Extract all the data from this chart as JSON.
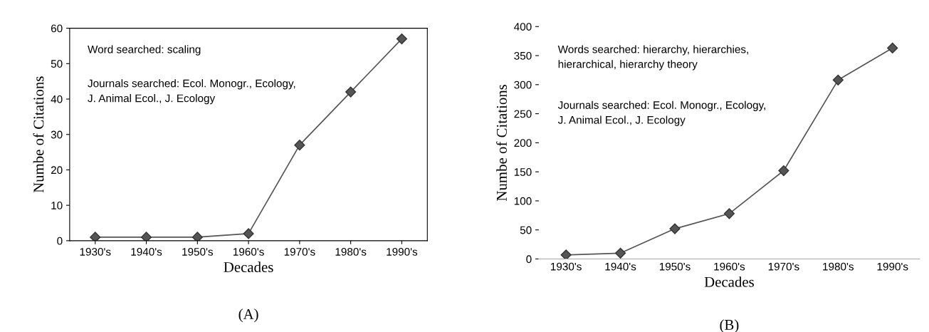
{
  "chart_data": [
    {
      "type": "line",
      "title": "(A)",
      "xlabel": "Decades",
      "ylabel": "Numbe of Citations",
      "categories": [
        "1930's",
        "1940's",
        "1950's",
        "1960's",
        "1970's",
        "1980's",
        "1990's"
      ],
      "series": [
        {
          "color": "#555555",
          "values": [
            1,
            1,
            1,
            2,
            27,
            42,
            57
          ]
        }
      ],
      "ylim": [
        0,
        60
      ],
      "yticks": [
        0,
        10,
        20,
        30,
        40,
        50,
        60
      ],
      "marker": "diamond",
      "line_style": "solid",
      "grid": false,
      "annotations": [
        "Word searched: scaling",
        "Journals searched: Ecol. Monogr., Ecology,\nJ. Animal Ecol., J. Ecology"
      ]
    },
    {
      "type": "line",
      "title": "(B)",
      "xlabel": "Decades",
      "ylabel": "Numbe of Citations",
      "categories": [
        "1930's",
        "1940's",
        "1950's",
        "1960's",
        "1970's",
        "1980's",
        "1990's"
      ],
      "series": [
        {
          "color": "#555555",
          "values": [
            7,
            10,
            52,
            78,
            152,
            308,
            363
          ]
        }
      ],
      "ylim": [
        0,
        400
      ],
      "yticks": [
        0,
        50,
        100,
        150,
        200,
        250,
        300,
        350,
        400
      ],
      "marker": "diamond",
      "line_style": "solid",
      "grid": false,
      "annotations": [
        "Words searched: hierarchy, hierarchies,\nhierarchical, hierarchy theory",
        "Journals searched: Ecol. Monogr., Ecology,\nJ. Animal Ecol., J. Ecology"
      ]
    }
  ]
}
